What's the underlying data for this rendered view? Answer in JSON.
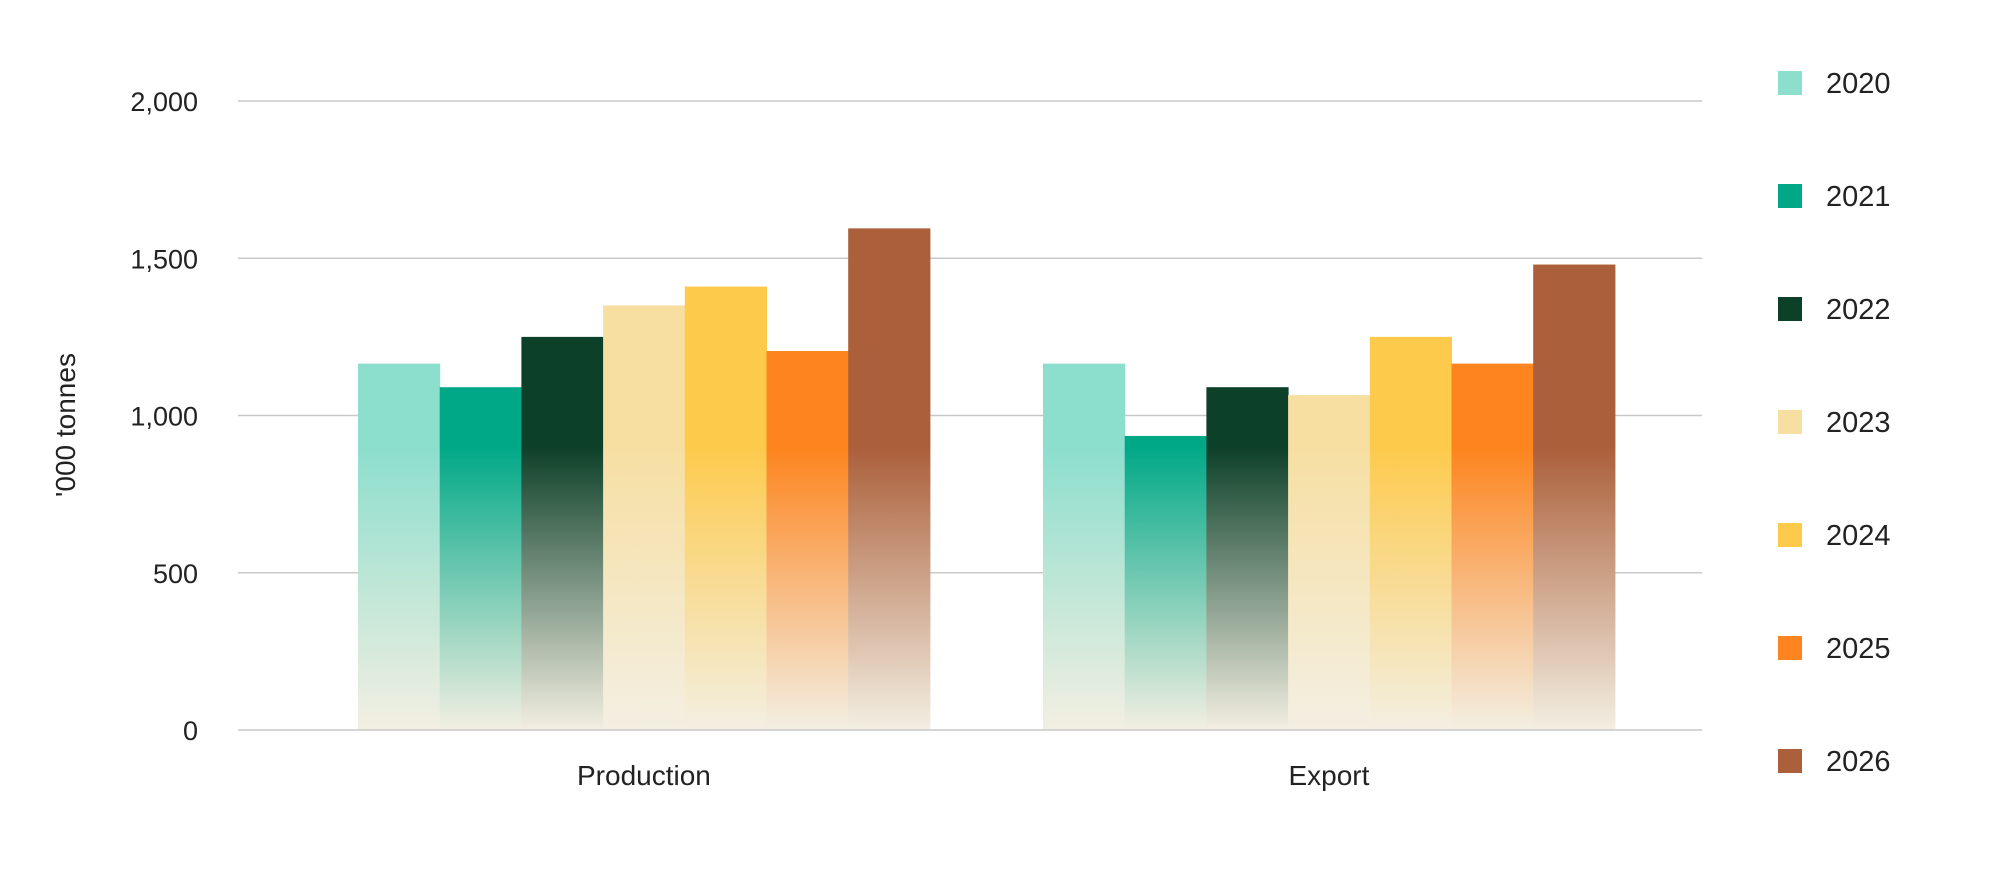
{
  "chart_data": {
    "type": "bar",
    "title": "",
    "xlabel": "",
    "ylabel": "'000 tonnes",
    "categories": [
      "Production",
      "Export"
    ],
    "ylim": [
      0,
      2000
    ],
    "yticks": [
      0,
      500,
      1000,
      1500,
      2000
    ],
    "ytick_labels": [
      "0",
      "500",
      "1,000",
      "1,500",
      "2,000"
    ],
    "grid": true,
    "legend_position": "right",
    "series": [
      {
        "name": "2020",
        "color": "#8cdecd",
        "values": [
          1165,
          1165
        ]
      },
      {
        "name": "2021",
        "color": "#00a887",
        "values": [
          1090,
          935
        ]
      },
      {
        "name": "2022",
        "color": "#0d4029",
        "values": [
          1250,
          1090
        ]
      },
      {
        "name": "2023",
        "color": "#f7dfa2",
        "values": [
          1350,
          1065
        ]
      },
      {
        "name": "2024",
        "color": "#fdca4c",
        "values": [
          1410,
          1250
        ]
      },
      {
        "name": "2025",
        "color": "#fd841e",
        "values": [
          1205,
          1165
        ]
      },
      {
        "name": "2026",
        "color": "#ab5f3a",
        "values": [
          1595,
          1480
        ]
      }
    ]
  }
}
